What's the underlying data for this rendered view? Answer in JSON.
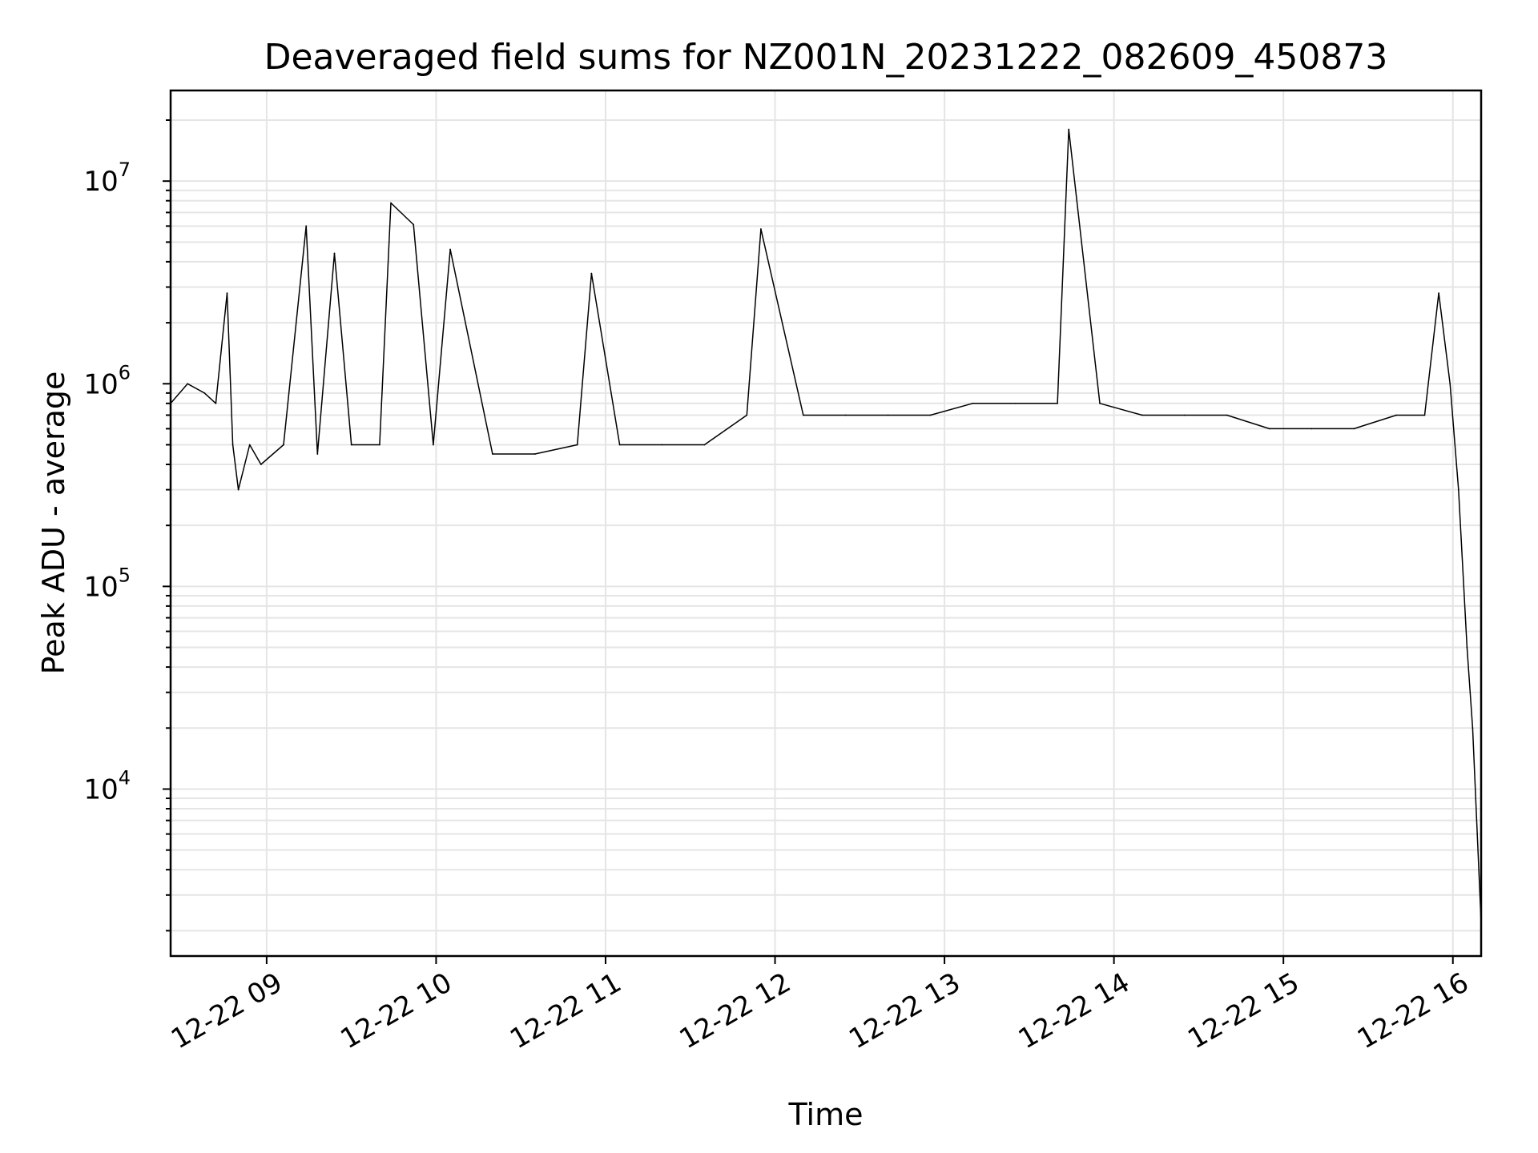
{
  "chart_data": {
    "type": "line",
    "title": "Deaveraged field sums for NZ001N_20231222_082609_450873",
    "xlabel": "Time",
    "ylabel": "Peak ADU - average",
    "yscale": "log",
    "ylim": [
      1500,
      28000000
    ],
    "xlim": [
      "2023-12-22 08:26",
      "2023-12-22 16:10"
    ],
    "grid": true,
    "line_color": "#000000",
    "grid_color": "#e5e5e5",
    "x_tick_labels": [
      "12-22 09",
      "12-22 10",
      "12-22 11",
      "12-22 12",
      "12-22 13",
      "12-22 14",
      "12-22 15",
      "12-22 16"
    ],
    "x_ticks": [
      "2023-12-22 09:00",
      "2023-12-22 10:00",
      "2023-12-22 11:00",
      "2023-12-22 12:00",
      "2023-12-22 13:00",
      "2023-12-22 14:00",
      "2023-12-22 15:00",
      "2023-12-22 16:00"
    ],
    "y_ticks": [
      {
        "value": 10000,
        "base": "10",
        "exp": "4"
      },
      {
        "value": 100000,
        "base": "10",
        "exp": "5"
      },
      {
        "value": 1000000,
        "base": "10",
        "exp": "6"
      },
      {
        "value": 10000000,
        "base": "10",
        "exp": "7"
      }
    ],
    "series": [
      {
        "x": [
          "2023-12-22 08:26",
          "2023-12-22 08:32",
          "2023-12-22 08:38",
          "2023-12-22 08:42",
          "2023-12-22 08:46",
          "2023-12-22 08:48",
          "2023-12-22 08:50",
          "2023-12-22 08:54",
          "2023-12-22 08:58",
          "2023-12-22 09:06",
          "2023-12-22 09:14",
          "2023-12-22 09:18",
          "2023-12-22 09:24",
          "2023-12-22 09:30",
          "2023-12-22 09:40",
          "2023-12-22 09:44",
          "2023-12-22 09:52",
          "2023-12-22 09:59",
          "2023-12-22 10:05",
          "2023-12-22 10:20",
          "2023-12-22 10:35",
          "2023-12-22 10:50",
          "2023-12-22 10:55",
          "2023-12-22 11:05",
          "2023-12-22 11:20",
          "2023-12-22 11:35",
          "2023-12-22 11:50",
          "2023-12-22 11:55",
          "2023-12-22 12:10",
          "2023-12-22 12:25",
          "2023-12-22 12:40",
          "2023-12-22 12:55",
          "2023-12-22 13:10",
          "2023-12-22 13:25",
          "2023-12-22 13:40",
          "2023-12-22 13:44",
          "2023-12-22 13:55",
          "2023-12-22 14:10",
          "2023-12-22 14:25",
          "2023-12-22 14:40",
          "2023-12-22 14:55",
          "2023-12-22 15:10",
          "2023-12-22 15:25",
          "2023-12-22 15:40",
          "2023-12-22 15:50",
          "2023-12-22 15:55",
          "2023-12-22 15:59",
          "2023-12-22 16:02",
          "2023-12-22 16:05",
          "2023-12-22 16:07",
          "2023-12-22 16:10"
        ],
        "y": [
          800000,
          1000000,
          900000,
          800000,
          2800000,
          500000,
          300000,
          500000,
          400000,
          500000,
          6000000,
          450000,
          4400000,
          500000,
          500000,
          7800000,
          6100000,
          500000,
          4600000,
          450000,
          450000,
          500000,
          3500000,
          500000,
          500000,
          500000,
          700000,
          5800000,
          700000,
          700000,
          700000,
          700000,
          800000,
          800000,
          800000,
          18000000,
          800000,
          700000,
          700000,
          700000,
          600000,
          600000,
          600000,
          700000,
          700000,
          2800000,
          1000000,
          300000,
          50000,
          20000,
          2200
        ]
      }
    ]
  }
}
